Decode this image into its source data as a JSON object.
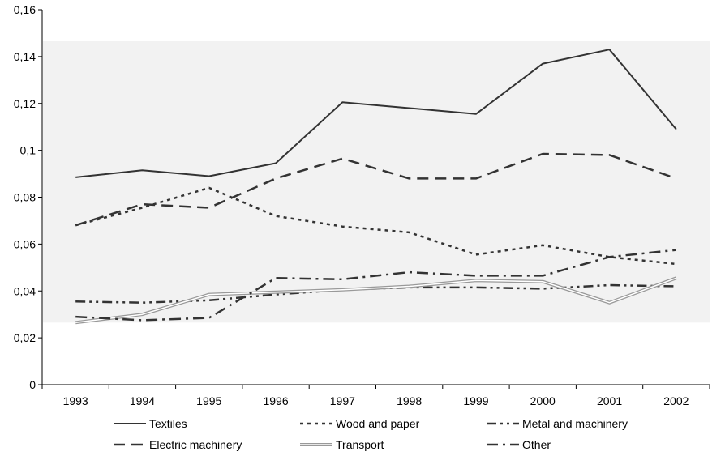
{
  "chart_data": {
    "type": "line",
    "categories": [
      "1993",
      "1994",
      "1995",
      "1996",
      "1997",
      "1998",
      "1999",
      "2000",
      "2001",
      "2002"
    ],
    "ylim": [
      0,
      0.16
    ],
    "yticks": [
      "0",
      "0,02",
      "0,04",
      "0,06",
      "0,08",
      "0,1",
      "0,12",
      "0,14",
      "0,16"
    ],
    "plot_background": "#f2f2f2",
    "legend_position": "bottom",
    "series": [
      {
        "name": "Textiles",
        "style": "solid",
        "color": "#333333",
        "values": [
          0.0885,
          0.0915,
          0.089,
          0.0945,
          0.1205,
          0.118,
          0.1155,
          0.137,
          0.143,
          0.109
        ]
      },
      {
        "name": "Wood and paper",
        "style": "dotted",
        "color": "#333333",
        "values": [
          0.068,
          0.0755,
          0.084,
          0.072,
          0.0675,
          0.065,
          0.0555,
          0.0595,
          0.0545,
          0.0515
        ]
      },
      {
        "name": "Metal and machinery",
        "style": "dash-dot-dot",
        "color": "#333333",
        "values": [
          0.0355,
          0.035,
          0.036,
          0.0385,
          0.0405,
          0.0415,
          0.0415,
          0.041,
          0.0425,
          0.042
        ]
      },
      {
        "name": "Electric machinery",
        "style": "long-dash",
        "color": "#333333",
        "values": [
          0.068,
          0.077,
          0.0755,
          0.088,
          0.0965,
          0.088,
          0.088,
          0.0985,
          0.098,
          0.088
        ]
      },
      {
        "name": "Transport",
        "style": "double",
        "color": "#999999",
        "values": [
          0.0265,
          0.03,
          0.0385,
          0.0395,
          0.0405,
          0.042,
          0.0445,
          0.044,
          0.035,
          0.0455
        ]
      },
      {
        "name": "Other",
        "style": "dash-dot",
        "color": "#333333",
        "values": [
          0.029,
          0.0275,
          0.0285,
          0.0455,
          0.045,
          0.048,
          0.0465,
          0.0465,
          0.0545,
          0.0575
        ]
      }
    ]
  }
}
